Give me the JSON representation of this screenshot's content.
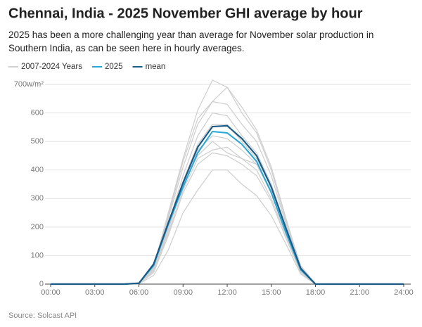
{
  "chart_data": {
    "type": "line",
    "title": "Chennai, India - 2025 November GHI average by hour",
    "subtitle": "2025 has been a more challenging year than average for November solar production in Southern India, as can be seen here in hourly averages.",
    "source": "Source: Solcast API",
    "x": [
      0,
      1,
      2,
      3,
      4,
      5,
      6,
      7,
      8,
      9,
      10,
      11,
      12,
      13,
      14,
      15,
      16,
      17,
      18,
      19,
      20,
      21,
      22,
      23,
      24
    ],
    "xlim": [
      0,
      24
    ],
    "xticks": [
      {
        "value": 0,
        "label": "00:00"
      },
      {
        "value": 3,
        "label": "03:00"
      },
      {
        "value": 6,
        "label": "06:00"
      },
      {
        "value": 9,
        "label": "09:00"
      },
      {
        "value": 12,
        "label": "12:00"
      },
      {
        "value": 15,
        "label": "15:00"
      },
      {
        "value": 18,
        "label": "18:00"
      },
      {
        "value": 21,
        "label": "21:00"
      },
      {
        "value": 24,
        "label": "24:00"
      }
    ],
    "ylim": [
      0,
      700
    ],
    "yticks": [
      0,
      100,
      200,
      300,
      400,
      500,
      600,
      {
        "value": 700,
        "label": "700w/m²"
      }
    ],
    "grid": true,
    "reference": {
      "name": "2007-2024 Years",
      "color": "#d0d0d0",
      "lines": [
        [
          0,
          0,
          0,
          0,
          0,
          0,
          3,
          60,
          250,
          440,
          610,
          715,
          690,
          620,
          540,
          410,
          230,
          60,
          0,
          0,
          0,
          0,
          0,
          0,
          0
        ],
        [
          0,
          0,
          0,
          0,
          0,
          0,
          3,
          65,
          240,
          430,
          580,
          640,
          690,
          600,
          530,
          400,
          220,
          65,
          0,
          0,
          0,
          0,
          0,
          0,
          0
        ],
        [
          0,
          0,
          0,
          0,
          0,
          0,
          3,
          70,
          230,
          410,
          560,
          640,
          630,
          560,
          500,
          380,
          210,
          60,
          0,
          0,
          0,
          0,
          0,
          0,
          0
        ],
        [
          0,
          0,
          0,
          0,
          0,
          0,
          2,
          55,
          210,
          380,
          520,
          600,
          590,
          520,
          460,
          350,
          200,
          55,
          0,
          0,
          0,
          0,
          0,
          0,
          0
        ],
        [
          0,
          0,
          0,
          0,
          0,
          0,
          2,
          60,
          200,
          360,
          490,
          560,
          560,
          500,
          440,
          340,
          190,
          50,
          0,
          0,
          0,
          0,
          0,
          0,
          0
        ],
        [
          0,
          0,
          0,
          0,
          0,
          0,
          2,
          50,
          190,
          350,
          470,
          520,
          510,
          470,
          420,
          320,
          180,
          50,
          0,
          0,
          0,
          0,
          0,
          0,
          0
        ],
        [
          0,
          0,
          0,
          0,
          0,
          0,
          2,
          45,
          180,
          330,
          440,
          470,
          480,
          440,
          400,
          300,
          170,
          45,
          0,
          0,
          0,
          0,
          0,
          0,
          0
        ],
        [
          0,
          0,
          0,
          0,
          0,
          0,
          2,
          40,
          170,
          320,
          420,
          460,
          450,
          420,
          380,
          290,
          160,
          40,
          0,
          0,
          0,
          0,
          0,
          0,
          0
        ],
        [
          0,
          0,
          0,
          0,
          0,
          0,
          1,
          30,
          120,
          250,
          330,
          400,
          400,
          350,
          310,
          240,
          140,
          35,
          0,
          0,
          0,
          0,
          0,
          0,
          0
        ],
        [
          0,
          0,
          0,
          0,
          0,
          0,
          2,
          55,
          200,
          350,
          450,
          500,
          460,
          440,
          420,
          330,
          190,
          55,
          0,
          0,
          0,
          0,
          0,
          0,
          0
        ]
      ]
    },
    "series": [
      {
        "name": "2025",
        "color": "#2aa6d6",
        "values": [
          0,
          0,
          0,
          0,
          0,
          0,
          3,
          65,
          210,
          340,
          460,
          535,
          530,
          490,
          430,
          320,
          180,
          50,
          0,
          0,
          0,
          0,
          0,
          0,
          0
        ]
      },
      {
        "name": "mean",
        "color": "#1a5a86",
        "values": [
          0,
          0,
          0,
          0,
          0,
          0,
          3,
          70,
          215,
          355,
          480,
          552,
          555,
          510,
          450,
          340,
          195,
          55,
          0,
          0,
          0,
          0,
          0,
          0,
          0
        ]
      }
    ]
  }
}
